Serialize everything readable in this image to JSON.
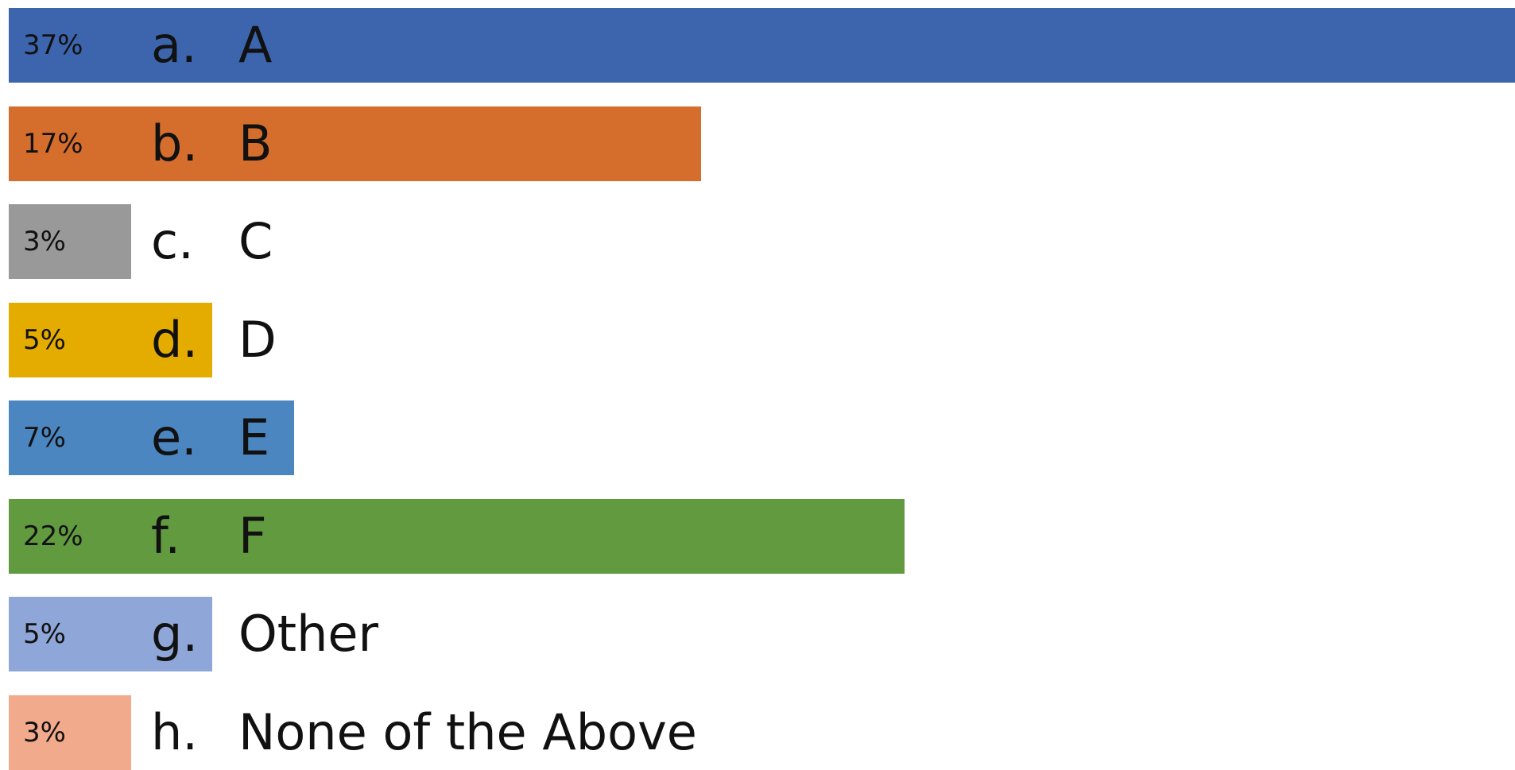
{
  "chart_data": {
    "type": "bar",
    "orientation": "horizontal",
    "title": "",
    "xlabel": "",
    "ylabel": "",
    "xlim": [
      0,
      37
    ],
    "grid": false,
    "legend": "none",
    "categories": [
      "a.",
      "b.",
      "c.",
      "d.",
      "e.",
      "f.",
      "g.",
      "h."
    ],
    "options": [
      "A",
      "B",
      "C",
      "D",
      "E",
      "F",
      "Other",
      "None of the Above"
    ],
    "values": [
      37,
      17,
      3,
      5,
      7,
      22,
      5,
      3
    ],
    "value_labels": [
      "37%",
      "17%",
      "3%",
      "5%",
      "7%",
      "22%",
      "5%",
      "3%"
    ],
    "colors": [
      "#3D65AD",
      "#D56E2D",
      "#999999",
      "#E5AC00",
      "#4C86C0",
      "#629A40",
      "#8FA6D8",
      "#F2AA8C"
    ]
  }
}
